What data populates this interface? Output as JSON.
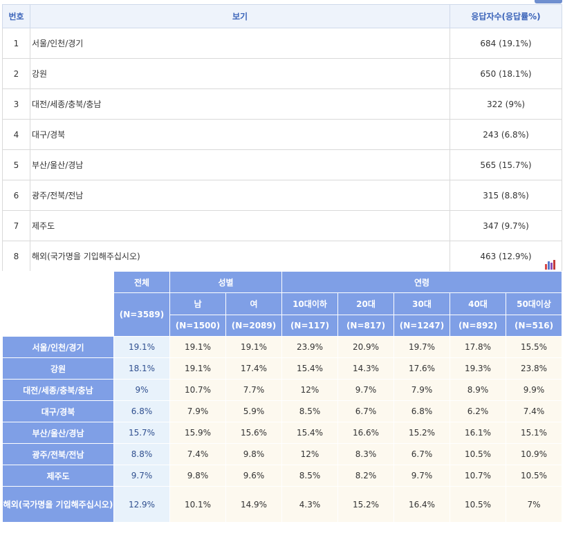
{
  "survey": {
    "headers": {
      "no": "번호",
      "option": "보기",
      "count": "응답자수(응답률%)"
    },
    "rows": [
      {
        "no": "1",
        "label": "서울/인천/경기",
        "count": "684 (19.1%)"
      },
      {
        "no": "2",
        "label": "강원",
        "count": "650 (18.1%)"
      },
      {
        "no": "3",
        "label": "대전/세종/충북/충남",
        "count": "322 (9%)"
      },
      {
        "no": "4",
        "label": "대구/경북",
        "count": "243 (6.8%)"
      },
      {
        "no": "5",
        "label": "부산/울산/경남",
        "count": "565 (15.7%)"
      },
      {
        "no": "6",
        "label": "광주/전북/전남",
        "count": "315 (8.8%)"
      },
      {
        "no": "7",
        "label": "제주도",
        "count": "347 (9.7%)"
      },
      {
        "no": "8",
        "label": "해외(국가명을 기입해주십시오)",
        "count": "463 (12.9%)"
      }
    ]
  },
  "crosstab": {
    "total": {
      "label": "전체",
      "n": "(N=3589)"
    },
    "gender": {
      "label": "성별",
      "male": "남",
      "male_n": "(N=1500)",
      "female": "여",
      "female_n": "(N=2089)"
    },
    "age": {
      "label": "연령",
      "groups": [
        {
          "label": "10대이하",
          "n": "(N=117)"
        },
        {
          "label": "20대",
          "n": "(N=817)"
        },
        {
          "label": "30대",
          "n": "(N=1247)"
        },
        {
          "label": "40대",
          "n": "(N=892)"
        },
        {
          "label": "50대이상",
          "n": "(N=516)"
        }
      ]
    },
    "rows": [
      {
        "label": "서울/인천/경기",
        "values": [
          "19.1%",
          "19.1%",
          "19.1%",
          "23.9%",
          "20.9%",
          "19.7%",
          "17.8%",
          "15.5%"
        ]
      },
      {
        "label": "강원",
        "values": [
          "18.1%",
          "19.1%",
          "17.4%",
          "15.4%",
          "14.3%",
          "17.6%",
          "19.3%",
          "23.8%"
        ]
      },
      {
        "label": "대전/세종/충북/충남",
        "values": [
          "9%",
          "10.7%",
          "7.7%",
          "12%",
          "9.7%",
          "7.9%",
          "8.9%",
          "9.9%"
        ]
      },
      {
        "label": "대구/경북",
        "values": [
          "6.8%",
          "7.9%",
          "5.9%",
          "8.5%",
          "6.7%",
          "6.8%",
          "6.2%",
          "7.4%"
        ]
      },
      {
        "label": "부산/울산/경남",
        "values": [
          "15.7%",
          "15.9%",
          "15.6%",
          "15.4%",
          "16.6%",
          "15.2%",
          "16.1%",
          "15.1%"
        ]
      },
      {
        "label": "광주/전북/전남",
        "values": [
          "8.8%",
          "7.4%",
          "9.8%",
          "12%",
          "8.3%",
          "6.7%",
          "10.5%",
          "10.9%"
        ]
      },
      {
        "label": "제주도",
        "values": [
          "9.7%",
          "9.8%",
          "9.6%",
          "8.5%",
          "8.2%",
          "9.7%",
          "10.7%",
          "10.5%"
        ]
      },
      {
        "label": "해외(국가명을 기입해주십시오)",
        "values": [
          "12.9%",
          "10.1%",
          "14.9%",
          "4.3%",
          "15.2%",
          "16.4%",
          "10.5%",
          "7%"
        ]
      }
    ]
  },
  "icons": {
    "chart": "bar-chart-icon"
  },
  "colors": {
    "header_blue": "#7f9fe6",
    "total_bg": "#e8f2fb",
    "value_bg": "#fdf9ef",
    "header_text": "#3a63b9"
  }
}
